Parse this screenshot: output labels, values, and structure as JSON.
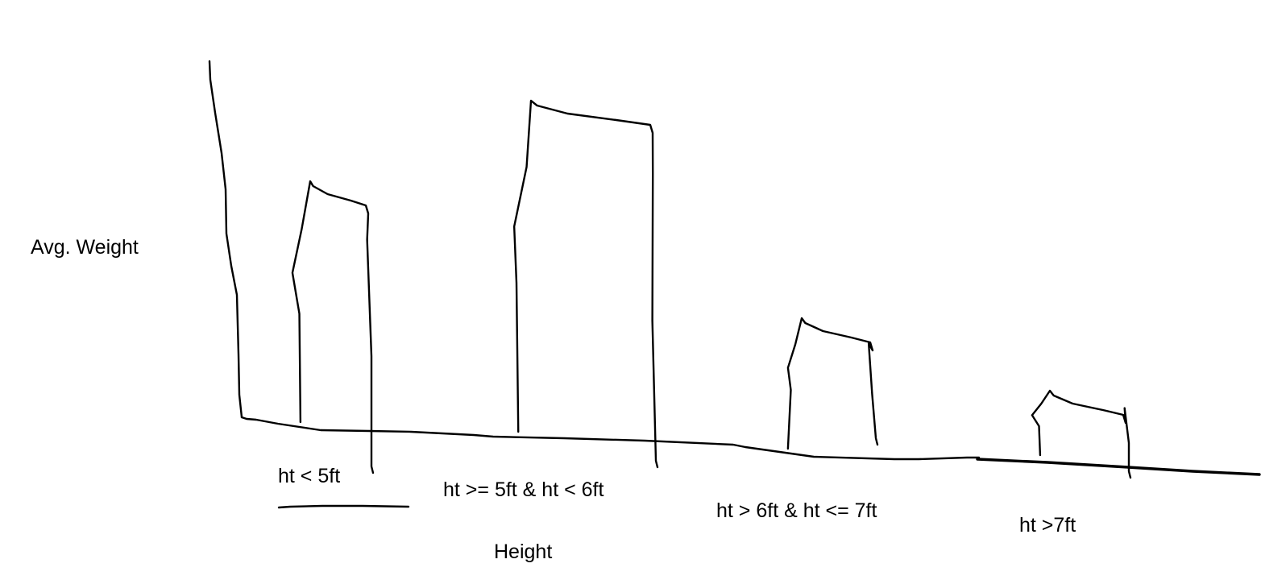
{
  "chart_data": {
    "type": "bar",
    "xlabel": "Height",
    "ylabel": "Avg. Weight",
    "categories": [
      "ht < 5ft",
      "ht >= 5ft & ht < 6ft",
      "ht > 6ft & ht <= 7ft",
      "ht >7ft"
    ],
    "values": [
      3.2,
      4.2,
      1.5,
      0.6
    ],
    "ylim": [
      0,
      4.5
    ],
    "grid": false,
    "legend": "none",
    "style": "hand-drawn",
    "color": "#000000"
  }
}
